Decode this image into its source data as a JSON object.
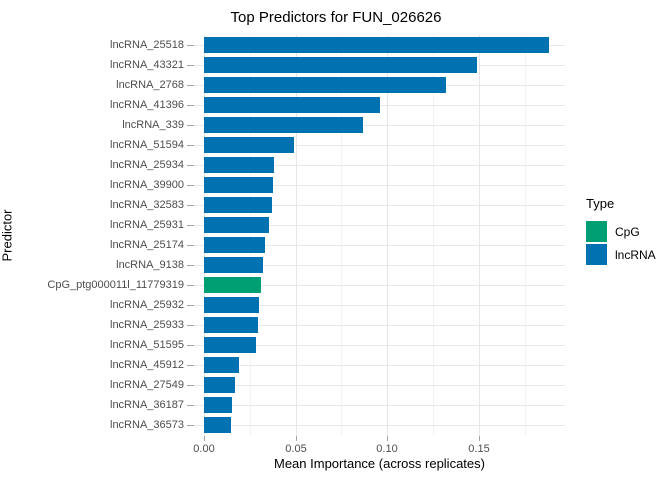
{
  "figure": {
    "title": "Top Predictors for FUN_026626",
    "background_color": "#ffffff"
  },
  "chart_data": {
    "type": "bar",
    "orientation": "horizontal",
    "title": "Top Predictors for FUN_026626",
    "xlabel": "Mean Importance (across replicates)",
    "ylabel": "Predictor",
    "xlim": [
      0,
      0.197
    ],
    "x_major_ticks": [
      0,
      0.05,
      0.1,
      0.15
    ],
    "x_tick_labels": [
      "0.00",
      "0.05",
      "0.10",
      "0.15"
    ],
    "x_minor_ticks": [
      0.025,
      0.075,
      0.125,
      0.175
    ],
    "grid": "major and minor vertical gridlines, horizontal gridline per category",
    "legend_position": "right",
    "categories": [
      "lncRNA_25518",
      "lncRNA_43321",
      "lncRNA_2768",
      "lncRNA_41396",
      "lncRNA_339",
      "lncRNA_51594",
      "lncRNA_25934",
      "lncRNA_39900",
      "lncRNA_32583",
      "lncRNA_25931",
      "lncRNA_25174",
      "lncRNA_9138",
      "CpG_ptg000011l_11779319",
      "lncRNA_25932",
      "lncRNA_25933",
      "lncRNA_51595",
      "lncRNA_45912",
      "lncRNA_27549",
      "lncRNA_36187",
      "lncRNA_36573"
    ],
    "values": [
      0.188,
      0.149,
      0.132,
      0.096,
      0.087,
      0.049,
      0.038,
      0.0376,
      0.0371,
      0.0354,
      0.0333,
      0.0322,
      0.0311,
      0.03,
      0.0297,
      0.0284,
      0.0191,
      0.0169,
      0.0153,
      0.0147
    ],
    "bar_types": [
      "lncRNA",
      "lncRNA",
      "lncRNA",
      "lncRNA",
      "lncRNA",
      "lncRNA",
      "lncRNA",
      "lncRNA",
      "lncRNA",
      "lncRNA",
      "lncRNA",
      "lncRNA",
      "CpG",
      "lncRNA",
      "lncRNA",
      "lncRNA",
      "lncRNA",
      "lncRNA",
      "lncRNA",
      "lncRNA"
    ],
    "colors": {
      "CpG": "#009E73",
      "lncRNA": "#0072B2"
    },
    "legend": {
      "title": "Type",
      "entries": [
        {
          "label": "CpG",
          "color": "#009E73"
        },
        {
          "label": "lncRNA",
          "color": "#0072B2"
        }
      ]
    }
  }
}
